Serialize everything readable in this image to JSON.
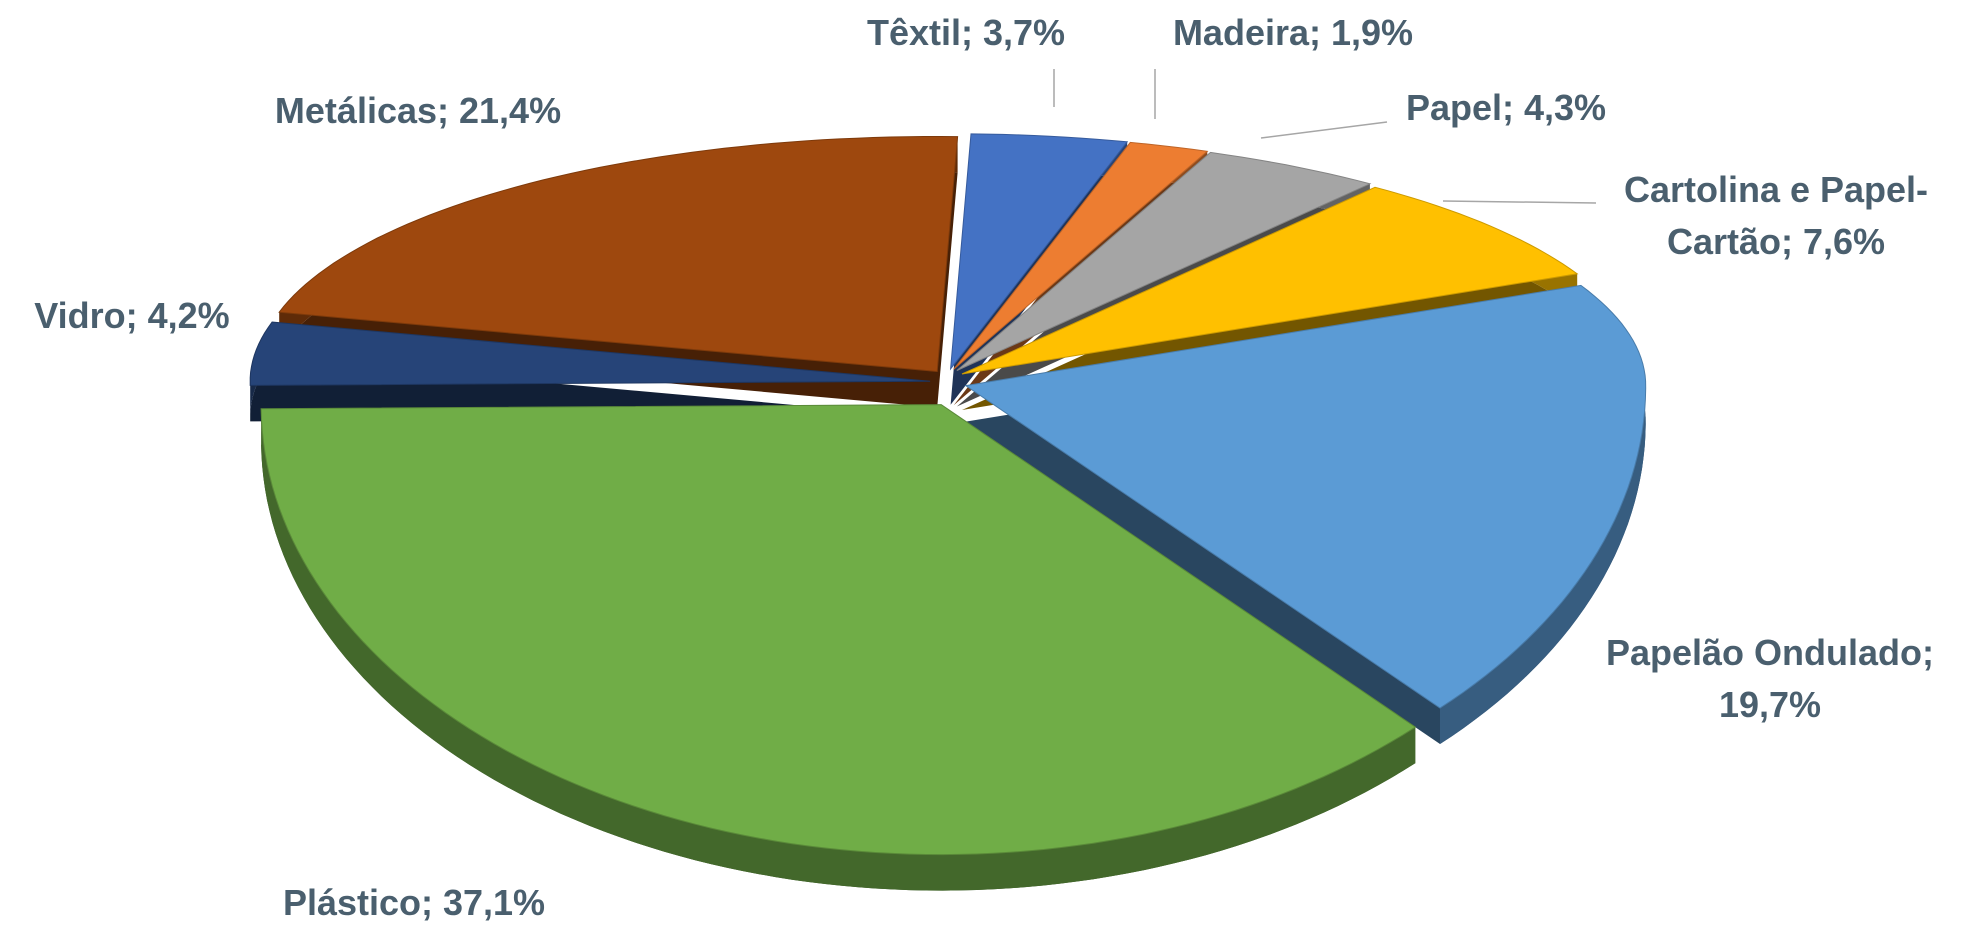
{
  "chart_data": {
    "type": "pie3d",
    "labels": [
      "Têxtil; 3,7%",
      "Madeira; 1,9%",
      "Papel; 4,3%",
      "Cartolina e Papel-\nCartão; 7,6%",
      "Papelão Ondulado;\n19,7%",
      "Plástico; 37,1%",
      "Vidro; 4,2%",
      "Metálicas; 21,4%"
    ],
    "values": [
      3.7,
      1.9,
      4.3,
      7.6,
      19.7,
      37.1,
      4.2,
      21.4
    ],
    "colors": [
      "#4472c4",
      "#ed7d31",
      "#a5a5a5",
      "#ffc000",
      "#5b9bd5",
      "#70ad47",
      "#264478",
      "#9e480e"
    ]
  }
}
